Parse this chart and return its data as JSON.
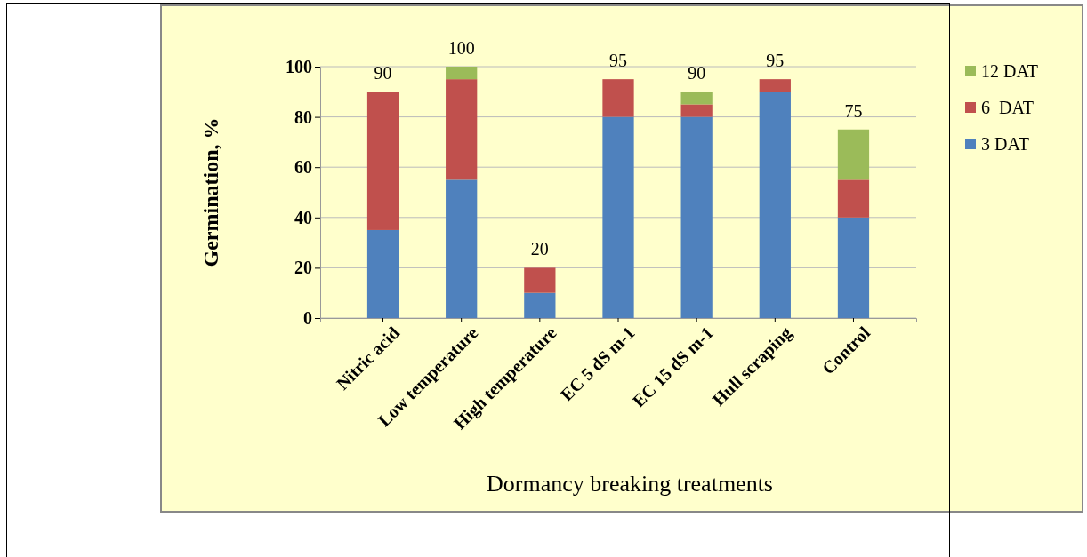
{
  "chart_data": {
    "type": "bar",
    "stacked": true,
    "xlabel": "Dormancy breaking treatments",
    "ylabel": "Germination, %",
    "categories": [
      "Nitric acid",
      "Low temperature",
      "High temperature",
      "EC 5 dS m-1",
      "EC 15 dS m-1",
      "Hull scraping",
      "Control"
    ],
    "series": [
      {
        "name": "3 DAT",
        "color": "#4f81bd",
        "values": [
          35,
          55,
          10,
          80,
          80,
          90,
          40
        ]
      },
      {
        "name": "6  DAT",
        "color": "#c0504d",
        "values": [
          55,
          40,
          10,
          15,
          5,
          5,
          15
        ]
      },
      {
        "name": "12 DAT",
        "color": "#9bbb59",
        "values": [
          0,
          5,
          0,
          0,
          5,
          0,
          20
        ]
      }
    ],
    "totals": [
      "90",
      "100",
      "20",
      "95",
      "90",
      "95",
      "75"
    ],
    "ylim": [
      0,
      100
    ],
    "yticks": [
      0,
      20,
      40,
      60,
      80,
      100
    ],
    "grid": "y",
    "legend": "right"
  }
}
